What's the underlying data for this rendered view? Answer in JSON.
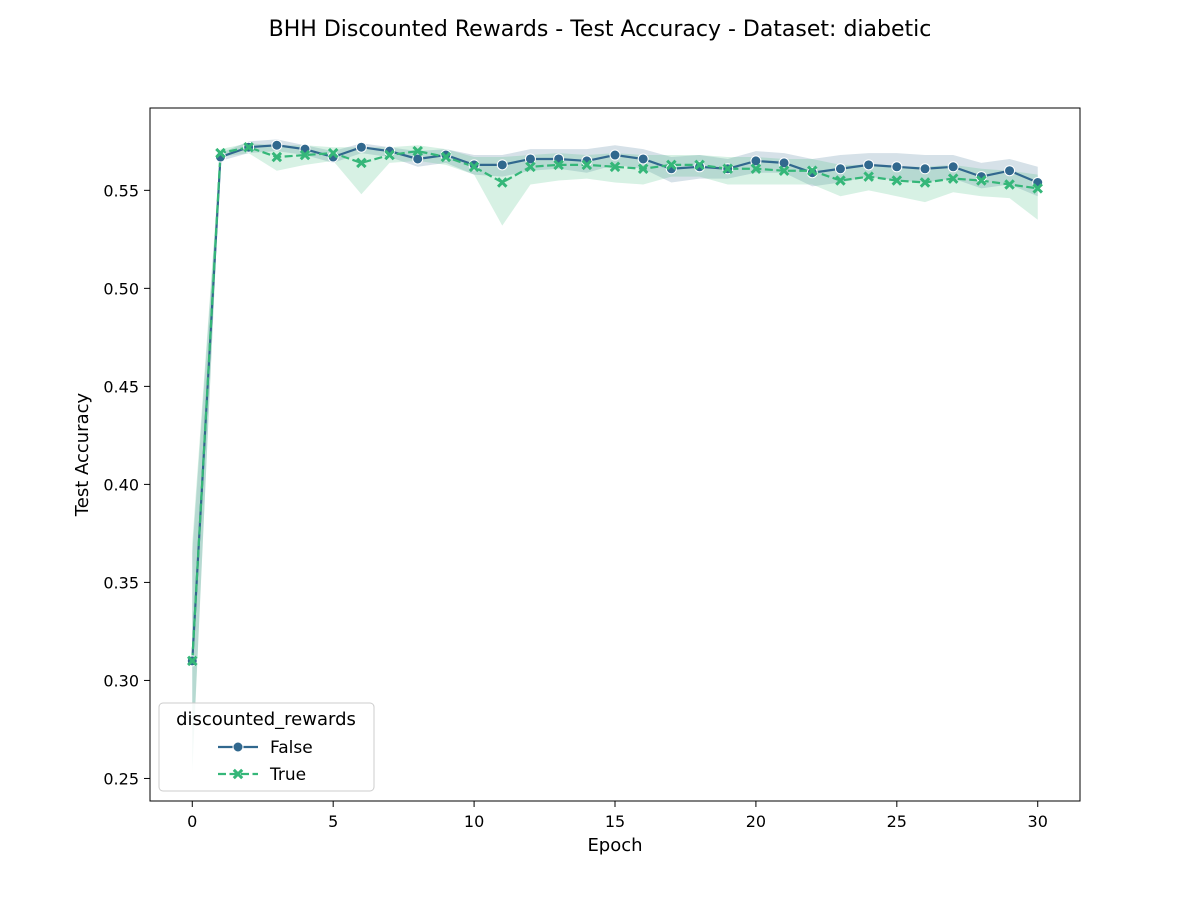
{
  "chart_data": {
    "type": "line",
    "title": "BHH Discounted Rewards - Test Accuracy - Dataset: diabetic",
    "xlabel": "Epoch",
    "ylabel": "Test Accuracy",
    "xlim": [
      -1.5,
      31.5
    ],
    "ylim": [
      0.2385,
      0.592
    ],
    "xticks": [
      0,
      5,
      10,
      15,
      20,
      25,
      30
    ],
    "xtick_labels": [
      "0",
      "5",
      "10",
      "15",
      "20",
      "25",
      "30"
    ],
    "yticks": [
      0.25,
      0.3,
      0.35,
      0.4,
      0.45,
      0.5,
      0.55
    ],
    "ytick_labels": [
      "0.25",
      "0.30",
      "0.35",
      "0.40",
      "0.45",
      "0.50",
      "0.55"
    ],
    "grid": false,
    "legend": {
      "title": "discounted_rewards",
      "placement": "lower-left"
    },
    "x": [
      0,
      1,
      2,
      3,
      4,
      5,
      6,
      7,
      8,
      9,
      10,
      11,
      12,
      13,
      14,
      15,
      16,
      17,
      18,
      19,
      20,
      21,
      22,
      23,
      24,
      25,
      26,
      27,
      28,
      29,
      30
    ],
    "series": [
      {
        "name": "False",
        "color": "#31688e",
        "marker": "circle",
        "dash": "solid",
        "values": [
          0.31,
          0.567,
          0.572,
          0.573,
          0.571,
          0.567,
          0.572,
          0.57,
          0.566,
          0.568,
          0.563,
          0.563,
          0.566,
          0.566,
          0.565,
          0.568,
          0.566,
          0.561,
          0.562,
          0.561,
          0.565,
          0.564,
          0.559,
          0.561,
          0.563,
          0.562,
          0.561,
          0.562,
          0.557,
          0.56,
          0.554
        ],
        "lower": [
          0.255,
          0.565,
          0.569,
          0.57,
          0.568,
          0.564,
          0.569,
          0.567,
          0.562,
          0.564,
          0.558,
          0.557,
          0.56,
          0.561,
          0.559,
          0.563,
          0.561,
          0.554,
          0.556,
          0.556,
          0.559,
          0.559,
          0.552,
          0.554,
          0.557,
          0.555,
          0.554,
          0.556,
          0.551,
          0.553,
          0.547
        ],
        "upper": [
          0.365,
          0.569,
          0.575,
          0.576,
          0.573,
          0.57,
          0.574,
          0.572,
          0.57,
          0.571,
          0.568,
          0.568,
          0.571,
          0.571,
          0.571,
          0.573,
          0.571,
          0.567,
          0.568,
          0.566,
          0.57,
          0.569,
          0.566,
          0.568,
          0.569,
          0.569,
          0.568,
          0.568,
          0.564,
          0.566,
          0.562
        ]
      },
      {
        "name": "True",
        "color": "#35b779",
        "marker": "x",
        "dash": "dashed",
        "values": [
          0.31,
          0.569,
          0.572,
          0.567,
          0.568,
          0.569,
          0.564,
          0.568,
          0.57,
          0.567,
          0.562,
          0.554,
          0.562,
          0.563,
          0.563,
          0.562,
          0.561,
          0.563,
          0.563,
          0.561,
          0.561,
          0.56,
          0.56,
          0.555,
          0.557,
          0.555,
          0.554,
          0.556,
          0.555,
          0.553,
          0.551
        ],
        "lower": [
          0.252,
          0.567,
          0.569,
          0.56,
          0.563,
          0.565,
          0.548,
          0.564,
          0.565,
          0.563,
          0.558,
          0.532,
          0.553,
          0.555,
          0.556,
          0.554,
          0.553,
          0.557,
          0.557,
          0.553,
          0.553,
          0.553,
          0.553,
          0.547,
          0.55,
          0.547,
          0.544,
          0.549,
          0.547,
          0.546,
          0.535
        ],
        "upper": [
          0.37,
          0.571,
          0.574,
          0.573,
          0.573,
          0.572,
          0.572,
          0.572,
          0.573,
          0.571,
          0.567,
          0.567,
          0.568,
          0.569,
          0.568,
          0.569,
          0.568,
          0.568,
          0.568,
          0.567,
          0.567,
          0.566,
          0.566,
          0.563,
          0.563,
          0.562,
          0.562,
          0.563,
          0.561,
          0.56,
          0.558
        ]
      }
    ]
  }
}
